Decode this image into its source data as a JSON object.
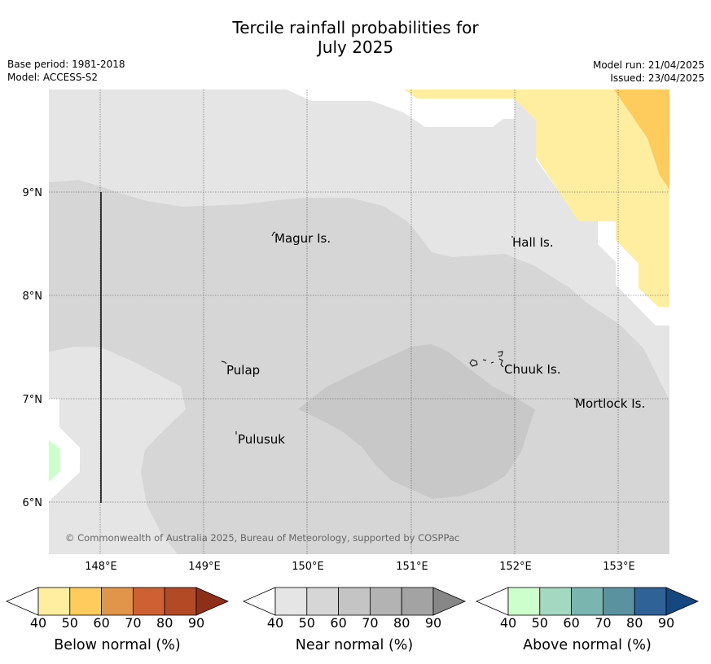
{
  "header": {
    "title_line1": "Tercile rainfall probabilities for",
    "title_line2": "July 2025",
    "base_period": "Base period: 1981-2018",
    "model": "Model: ACCESS-S2",
    "model_run": "Model run: 21/04/2025",
    "issued": "Issued: 23/04/2025"
  },
  "map": {
    "lon_ticks": [
      "148°E",
      "149°E",
      "150°E",
      "151°E",
      "152°E",
      "153°E"
    ],
    "lat_ticks": [
      "9°N",
      "8°N",
      "7°N",
      "6°N"
    ],
    "places": [
      {
        "name": "Magur Is."
      },
      {
        "name": "Hall Is."
      },
      {
        "name": "Pulap"
      },
      {
        "name": "Chuuk Is."
      },
      {
        "name": "Mortlock Is."
      },
      {
        "name": "Pulusuk"
      }
    ],
    "copyright": "© Commonwealth of Australia 2025, Bureau of Meteorology, supported by COSPPac"
  },
  "legends": [
    {
      "label": "Below normal (%)",
      "ticks": [
        "40",
        "50",
        "60",
        "70",
        "80",
        "90"
      ],
      "colors": [
        "#ffffff",
        "#ffeda0",
        "#fecc5c",
        "#e1954a",
        "#cd6133",
        "#b34a26",
        "#8e2f1a"
      ]
    },
    {
      "label": "Near normal (%)",
      "ticks": [
        "40",
        "50",
        "60",
        "70",
        "80",
        "90"
      ],
      "colors": [
        "#ffffff",
        "#e5e5e5",
        "#d6d6d6",
        "#c4c4c4",
        "#b3b3b3",
        "#a3a3a3",
        "#878787"
      ]
    },
    {
      "label": "Above normal (%)",
      "ticks": [
        "40",
        "50",
        "60",
        "70",
        "80",
        "90"
      ],
      "colors": [
        "#ffffff",
        "#ccffcc",
        "#a3d9c0",
        "#7bb5b0",
        "#5b929f",
        "#2f6296",
        "#15487e"
      ]
    }
  ]
}
